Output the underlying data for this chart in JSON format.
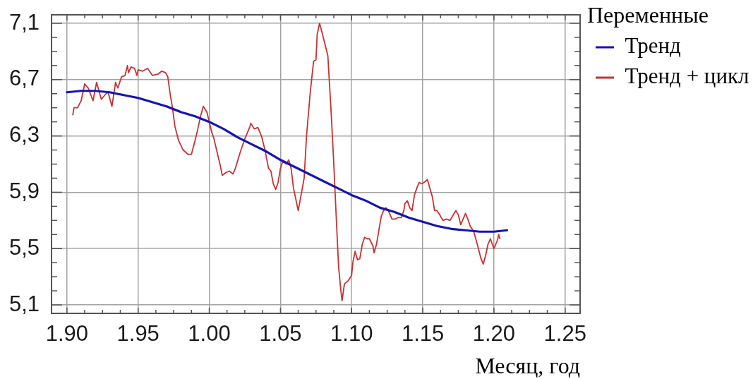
{
  "chart_data": {
    "type": "line",
    "xlabel": "Месяц, год",
    "legend_title": "Переменные",
    "series": [
      {
        "name": "Тренд",
        "color": "#1414b4",
        "x": [
          "1990-01",
          "1991-01",
          "1992-01",
          "1993-01",
          "1994-01",
          "1995-01",
          "1996-01",
          "1997-01",
          "1998-01",
          "1999-01",
          "2000-01",
          "2001-01",
          "2002-01",
          "2003-01",
          "2004-01",
          "2005-01",
          "2006-01",
          "2007-01",
          "2008-01",
          "2009-01",
          "2010-01",
          "2011-01",
          "2012-01",
          "2013-01",
          "2014-01",
          "2015-01",
          "2016-01",
          "2017-01",
          "2018-01",
          "2019-01",
          "2020-01",
          "2020-12"
        ],
        "values": [
          6.61,
          6.62,
          6.62,
          6.61,
          6.59,
          6.57,
          6.54,
          6.51,
          6.47,
          6.44,
          6.4,
          6.35,
          6.29,
          6.24,
          6.19,
          6.13,
          6.08,
          6.03,
          5.98,
          5.93,
          5.88,
          5.84,
          5.79,
          5.76,
          5.72,
          5.69,
          5.66,
          5.64,
          5.63,
          5.62,
          5.62,
          5.63
        ]
      },
      {
        "name": "Тренд + цикл",
        "color": "#c83232",
        "x": [
          "1990-06",
          "1990-07",
          "1990-10",
          "1991-01",
          "1991-04",
          "1991-07",
          "1991-11",
          "1992-02",
          "1992-06",
          "1992-09",
          "1992-11",
          "1992-12",
          "1993-03",
          "1993-06",
          "1993-08",
          "1993-11",
          "1994-02",
          "1994-04",
          "1994-05",
          "1994-07",
          "1994-10",
          "1994-12",
          "1995-01",
          "1995-05",
          "1995-09",
          "1996-01",
          "1996-06",
          "1996-09",
          "1996-12",
          "1997-02",
          "1997-04",
          "1997-06",
          "1997-08",
          "1997-11",
          "1998-03",
          "1998-07",
          "1998-10",
          "1999-02",
          "1999-06",
          "1999-08",
          "1999-11",
          "2000-01",
          "2000-03",
          "2000-05",
          "2000-08",
          "2000-10",
          "2000-12",
          "2001-03",
          "2001-06",
          "2001-09",
          "2001-11",
          "2002-03",
          "2002-07",
          "2002-11",
          "2002-12",
          "2003-03",
          "2003-06",
          "2003-09",
          "2003-12",
          "2004-03",
          "2004-05",
          "2004-07",
          "2004-09",
          "2004-11",
          "2005-01",
          "2005-03",
          "2005-06",
          "2005-08",
          "2005-10",
          "2005-12",
          "2006-04",
          "2006-06",
          "2006-09",
          "2006-11",
          "2007-02",
          "2007-05",
          "2007-07",
          "2007-08",
          "2007-10",
          "2007-11",
          "2008-02",
          "2008-05",
          "2008-06",
          "2008-08",
          "2008-10",
          "2008-12",
          "2009-02",
          "2009-04",
          "2009-05",
          "2009-07",
          "2009-10",
          "2010-01",
          "2010-02",
          "2010-04",
          "2010-06",
          "2010-08",
          "2010-10",
          "2010-12",
          "2011-02",
          "2011-04",
          "2011-07",
          "2011-08",
          "2011-10",
          "2011-12",
          "2012-02",
          "2012-04",
          "2012-06",
          "2012-08",
          "2012-11",
          "2013-02",
          "2013-04",
          "2013-07",
          "2013-09",
          "2013-10",
          "2013-12",
          "2014-02",
          "2014-04",
          "2014-06",
          "2014-08",
          "2014-10",
          "2014-12",
          "2015-02",
          "2015-05",
          "2015-07",
          "2015-09",
          "2015-11",
          "2016-01",
          "2016-04",
          "2016-06",
          "2016-09",
          "2016-12",
          "2017-02",
          "2017-05",
          "2017-07",
          "2017-09",
          "2017-11",
          "2018-01",
          "2018-03",
          "2018-05",
          "2018-08",
          "2018-11",
          "2019-02",
          "2019-04",
          "2019-06",
          "2019-08",
          "2019-10",
          "2020-01",
          "2020-02",
          "2020-04",
          "2020-05",
          "2020-06"
        ],
        "values": [
          6.45,
          6.5,
          6.5,
          6.55,
          6.67,
          6.64,
          6.55,
          6.68,
          6.56,
          6.59,
          6.61,
          6.6,
          6.51,
          6.68,
          6.64,
          6.72,
          6.73,
          6.8,
          6.75,
          6.79,
          6.78,
          6.73,
          6.77,
          6.76,
          6.78,
          6.73,
          6.74,
          6.76,
          6.75,
          6.72,
          6.6,
          6.5,
          6.37,
          6.27,
          6.2,
          6.17,
          6.17,
          6.3,
          6.45,
          6.51,
          6.47,
          6.4,
          6.33,
          6.28,
          6.17,
          6.1,
          6.02,
          6.04,
          6.05,
          6.03,
          6.07,
          6.18,
          6.28,
          6.36,
          6.39,
          6.35,
          6.36,
          6.3,
          6.2,
          6.07,
          6.05,
          5.96,
          5.92,
          5.97,
          6.07,
          6.12,
          6.1,
          6.13,
          6.07,
          5.93,
          5.77,
          5.86,
          6,
          6.3,
          6.6,
          6.83,
          6.84,
          7.02,
          7.1,
          7.07,
          6.97,
          6.87,
          6.72,
          6.43,
          6.1,
          5.73,
          5.37,
          5.2,
          5.13,
          5.25,
          5.27,
          5.31,
          5.4,
          5.48,
          5.42,
          5.43,
          5.53,
          5.58,
          5.57,
          5.57,
          5.52,
          5.47,
          5.53,
          5.63,
          5.73,
          5.77,
          5.79,
          5.77,
          5.71,
          5.71,
          5.72,
          5.72,
          5.77,
          5.82,
          5.84,
          5.79,
          5.77,
          5.88,
          5.93,
          5.97,
          5.96,
          5.97,
          5.99,
          5.93,
          5.87,
          5.77,
          5.77,
          5.73,
          5.7,
          5.71,
          5.7,
          5.73,
          5.77,
          5.74,
          5.67,
          5.71,
          5.75,
          5.71,
          5.66,
          5.62,
          5.53,
          5.43,
          5.39,
          5.45,
          5.53,
          5.57,
          5.5,
          5.52,
          5.56,
          5.6,
          5.57
        ]
      }
    ],
    "xlim": [
      "1988-12",
      "2026-01-20"
    ],
    "xticks": [
      {
        "value": "1990-01",
        "label": "1.90"
      },
      {
        "value": "1991-04",
        "label": null
      },
      {
        "value": "1992-07",
        "label": null
      },
      {
        "value": "1993-10",
        "label": null
      },
      {
        "value": "1995-01",
        "label": "1.95"
      },
      {
        "value": "1996-04",
        "label": null
      },
      {
        "value": "1997-07",
        "label": null
      },
      {
        "value": "1998-10",
        "label": null
      },
      {
        "value": "2000-01",
        "label": "1.00"
      },
      {
        "value": "2001-04",
        "label": null
      },
      {
        "value": "2002-07",
        "label": null
      },
      {
        "value": "2003-10",
        "label": null
      },
      {
        "value": "2005-01",
        "label": "1.05"
      },
      {
        "value": "2006-04",
        "label": null
      },
      {
        "value": "2007-07",
        "label": null
      },
      {
        "value": "2008-10",
        "label": null
      },
      {
        "value": "2010-01",
        "label": "1.10"
      },
      {
        "value": "2011-04",
        "label": null
      },
      {
        "value": "2012-07",
        "label": null
      },
      {
        "value": "2013-10",
        "label": null
      },
      {
        "value": "2015-01",
        "label": "1.15"
      },
      {
        "value": "2016-04",
        "label": null
      },
      {
        "value": "2017-07",
        "label": null
      },
      {
        "value": "2018-10",
        "label": null
      },
      {
        "value": "2020-01",
        "label": "1.20"
      },
      {
        "value": "2021-04",
        "label": null
      },
      {
        "value": "2022-07",
        "label": null
      },
      {
        "value": "2023-10",
        "label": null
      },
      {
        "value": "2025-01",
        "label": "1.25"
      }
    ],
    "ylim": [
      5.04,
      7.16
    ],
    "yticks": [
      {
        "value": 5.1,
        "label": "5,1"
      },
      {
        "value": 5.2,
        "label": null
      },
      {
        "value": 5.3,
        "label": null
      },
      {
        "value": 5.4,
        "label": null
      },
      {
        "value": 5.5,
        "label": "5,5"
      },
      {
        "value": 5.6,
        "label": null
      },
      {
        "value": 5.7,
        "label": null
      },
      {
        "value": 5.8,
        "label": null
      },
      {
        "value": 5.9,
        "label": "5,9"
      },
      {
        "value": 6.0,
        "label": null
      },
      {
        "value": 6.1,
        "label": null
      },
      {
        "value": 6.2,
        "label": null
      },
      {
        "value": 6.3,
        "label": "6,3"
      },
      {
        "value": 6.4,
        "label": null
      },
      {
        "value": 6.5,
        "label": null
      },
      {
        "value": 6.6,
        "label": null
      },
      {
        "value": 6.7,
        "label": "6,7"
      },
      {
        "value": 6.8,
        "label": null
      },
      {
        "value": 6.9,
        "label": null
      },
      {
        "value": 7.0,
        "label": null
      },
      {
        "value": 7.1,
        "label": "7,1"
      }
    ],
    "grid": true,
    "legend": "right",
    "marker": "none",
    "line_style": "solid"
  }
}
